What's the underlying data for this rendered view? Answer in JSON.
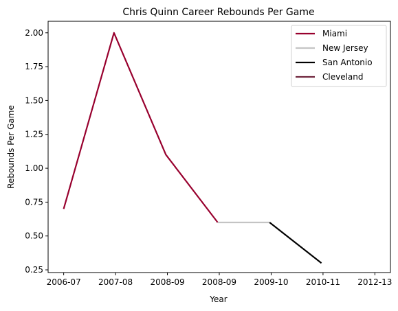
{
  "chart_data": {
    "type": "line",
    "title": "Chris Quinn Career Rebounds Per Game",
    "xlabel": "Year",
    "ylabel": "Rebounds Per Game",
    "categories": [
      "2006-07",
      "2007-08",
      "2008-09",
      "2008-09",
      "2009-10",
      "2010-11",
      "2012-13"
    ],
    "x": [
      0,
      1,
      2,
      3,
      4,
      5,
      6
    ],
    "ylim": [
      0.23,
      2.085
    ],
    "xlim": [
      -0.3,
      6.3
    ],
    "yticks": [
      0.25,
      0.5,
      0.75,
      1.0,
      1.25,
      1.5,
      1.75,
      2.0
    ],
    "ytick_labels": [
      "0.25",
      "0.50",
      "0.75",
      "1.00",
      "1.25",
      "1.50",
      "1.75",
      "2.00"
    ],
    "legend_position": "top-right",
    "grid": false,
    "series": [
      {
        "name": "Miami",
        "color": "#98002E",
        "points": [
          [
            0,
            0.7
          ],
          [
            0.97,
            2.0
          ],
          [
            1.97,
            1.1
          ],
          [
            2.97,
            0.6
          ]
        ]
      },
      {
        "name": "New Jersey",
        "color": "#C4C4C4",
        "points": [
          [
            2.97,
            0.6
          ],
          [
            3.97,
            0.6
          ]
        ]
      },
      {
        "name": "San Antonio",
        "color": "#000000",
        "points": [
          [
            3.97,
            0.6
          ],
          [
            4.97,
            0.3
          ]
        ]
      },
      {
        "name": "Cleveland",
        "color": "#6F263D",
        "points": []
      }
    ]
  }
}
